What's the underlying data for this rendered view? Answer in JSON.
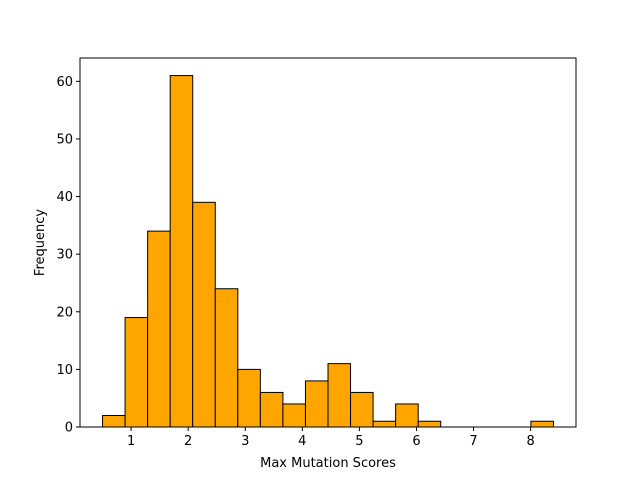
{
  "chart_data": {
    "type": "bar",
    "subtype": "histogram",
    "xlabel": "Max Mutation Scores",
    "ylabel": "Frequency",
    "bin_edges": [
      0.5,
      0.895,
      1.29,
      1.685,
      2.08,
      2.475,
      2.87,
      3.265,
      3.66,
      4.055,
      4.45,
      4.845,
      5.24,
      5.635,
      6.03,
      6.425,
      6.82,
      7.215,
      7.61,
      8.005,
      8.4
    ],
    "values": [
      2,
      19,
      34,
      61,
      39,
      24,
      10,
      6,
      4,
      8,
      11,
      6,
      1,
      4,
      1,
      0,
      0,
      0,
      0,
      1
    ],
    "xlim": [
      0.105,
      8.795
    ],
    "ylim": [
      0,
      64.05
    ],
    "xticks": [
      1,
      2,
      3,
      4,
      5,
      6,
      7,
      8
    ],
    "yticks": [
      0,
      10,
      20,
      30,
      40,
      50,
      60
    ],
    "bar_color": "#ffa500",
    "edge_color": "#000000",
    "grid": false
  }
}
